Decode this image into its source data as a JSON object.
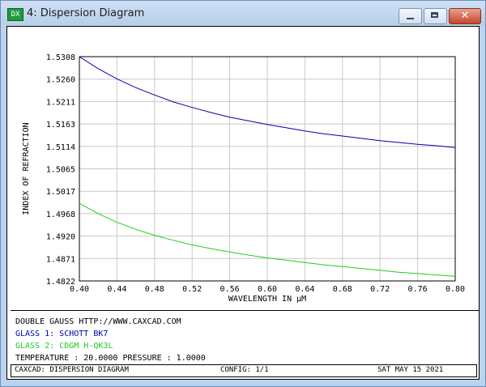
{
  "window": {
    "title": "4: Dispersion Diagram",
    "icon_label": "DX",
    "close_label": "✕"
  },
  "colors": {
    "series1": "#0000aa",
    "series2": "#22cc22",
    "grid": "#c8c8c8",
    "text": "#000000"
  },
  "chart_data": {
    "type": "line",
    "xlabel": "WAVELENGTH IN µM",
    "ylabel": "INDEX OF REFRACTION",
    "xlim": [
      0.4,
      0.8
    ],
    "ylim": [
      1.4822,
      1.5308
    ],
    "x_ticks": [
      "0.40",
      "0.44",
      "0.48",
      "0.52",
      "0.56",
      "0.60",
      "0.64",
      "0.68",
      "0.72",
      "0.76",
      "0.80"
    ],
    "y_ticks": [
      "1.4822",
      "1.4871",
      "1.4920",
      "1.4968",
      "1.5017",
      "1.5065",
      "1.5114",
      "1.5163",
      "1.5211",
      "1.5260",
      "1.5308"
    ],
    "grid": true,
    "series": [
      {
        "color": "#0000aa",
        "x": [
          0.4,
          0.42,
          0.44,
          0.46,
          0.48,
          0.5,
          0.52,
          0.54,
          0.56,
          0.58,
          0.6,
          0.62,
          0.64,
          0.66,
          0.68,
          0.7,
          0.72,
          0.74,
          0.76,
          0.78,
          0.8
        ],
        "y": [
          1.5308,
          1.5282,
          1.526,
          1.5241,
          1.5225,
          1.521,
          1.5198,
          1.5187,
          1.5177,
          1.5169,
          1.5161,
          1.5154,
          1.5147,
          1.5141,
          1.5136,
          1.5131,
          1.5126,
          1.5122,
          1.5118,
          1.5115,
          1.5111
        ]
      },
      {
        "color": "#22cc22",
        "x": [
          0.4,
          0.42,
          0.44,
          0.46,
          0.48,
          0.5,
          0.52,
          0.54,
          0.56,
          0.58,
          0.6,
          0.62,
          0.64,
          0.66,
          0.68,
          0.7,
          0.72,
          0.74,
          0.76,
          0.78,
          0.8
        ],
        "y": [
          1.499,
          1.4968,
          1.4949,
          1.4934,
          1.4921,
          1.491,
          1.49,
          1.4892,
          1.4885,
          1.4878,
          1.4872,
          1.4867,
          1.4862,
          1.4857,
          1.4853,
          1.4849,
          1.4845,
          1.4841,
          1.4838,
          1.4835,
          1.4832
        ]
      }
    ]
  },
  "info": {
    "line1": "DOUBLE GAUSS  HTTP://WWW.CAXCAD.COM",
    "line2": "GLASS 1: SCHOTT BK7",
    "line3": "GLASS 2: CDGM H-QK3L",
    "line4": "TEMPERATURE : 20.0000  PRESSURE : 1.0000"
  },
  "status": {
    "left": "CAXCAD: DISPERSION DIAGRAM",
    "center": "CONFIG: 1/1",
    "right": "SAT MAY 15 2021"
  }
}
